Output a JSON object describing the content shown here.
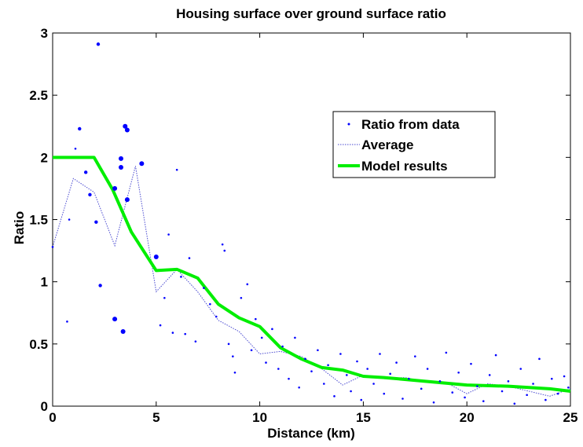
{
  "chart_data": {
    "type": "scatter",
    "title": "Housing surface over ground surface ratio",
    "xlabel": "Distance (km)",
    "ylabel": "Ratio",
    "xlim": [
      0,
      25
    ],
    "ylim": [
      0,
      3
    ],
    "xticks": [
      0,
      5,
      10,
      15,
      20,
      25
    ],
    "yticks": [
      0,
      0.5,
      1,
      1.5,
      2,
      2.5,
      3
    ],
    "xtick_labels": [
      "0",
      "5",
      "10",
      "15",
      "20",
      "25"
    ],
    "ytick_labels": [
      "0",
      "0.5",
      "1",
      "1.5",
      "2",
      "2.5",
      "3"
    ],
    "grid": false,
    "legend_position": "top-right",
    "legend": [
      "Ratio from data",
      "Average",
      "Model results"
    ],
    "colors": {
      "data": "#0000ff",
      "average": "#4a4ad0",
      "model": "#00ee00"
    },
    "series": [
      {
        "name": "Ratio from data",
        "style": "scatter",
        "points": [
          {
            "x": 0.0,
            "y": 1.28,
            "s": 1
          },
          {
            "x": 0.7,
            "y": 0.68,
            "s": 1
          },
          {
            "x": 0.8,
            "y": 1.5,
            "s": 1
          },
          {
            "x": 1.1,
            "y": 2.07,
            "s": 1
          },
          {
            "x": 1.3,
            "y": 2.23,
            "s": 2
          },
          {
            "x": 1.6,
            "y": 1.88,
            "s": 2
          },
          {
            "x": 1.8,
            "y": 1.7,
            "s": 2
          },
          {
            "x": 2.1,
            "y": 1.48,
            "s": 2
          },
          {
            "x": 2.2,
            "y": 2.91,
            "s": 2
          },
          {
            "x": 2.3,
            "y": 0.97,
            "s": 2
          },
          {
            "x": 3.0,
            "y": 1.75,
            "s": 3
          },
          {
            "x": 3.0,
            "y": 0.7,
            "s": 3
          },
          {
            "x": 3.3,
            "y": 1.99,
            "s": 3
          },
          {
            "x": 3.3,
            "y": 1.92,
            "s": 3
          },
          {
            "x": 3.4,
            "y": 0.6,
            "s": 3
          },
          {
            "x": 3.5,
            "y": 2.25,
            "s": 3
          },
          {
            "x": 3.6,
            "y": 2.22,
            "s": 3
          },
          {
            "x": 3.6,
            "y": 1.66,
            "s": 3
          },
          {
            "x": 4.3,
            "y": 1.95,
            "s": 3
          },
          {
            "x": 5.0,
            "y": 1.2,
            "s": 3
          },
          {
            "x": 5.2,
            "y": 0.65,
            "s": 1
          },
          {
            "x": 5.4,
            "y": 0.87,
            "s": 1
          },
          {
            "x": 5.6,
            "y": 1.38,
            "s": 1
          },
          {
            "x": 5.8,
            "y": 0.59,
            "s": 1
          },
          {
            "x": 6.0,
            "y": 1.9,
            "s": 1
          },
          {
            "x": 6.2,
            "y": 1.04,
            "s": 1
          },
          {
            "x": 6.4,
            "y": 0.58,
            "s": 1
          },
          {
            "x": 6.6,
            "y": 1.19,
            "s": 1
          },
          {
            "x": 6.9,
            "y": 0.52,
            "s": 1
          },
          {
            "x": 7.3,
            "y": 0.95,
            "s": 1
          },
          {
            "x": 7.6,
            "y": 0.82,
            "s": 1
          },
          {
            "x": 7.9,
            "y": 0.72,
            "s": 1
          },
          {
            "x": 8.2,
            "y": 1.3,
            "s": 1
          },
          {
            "x": 8.3,
            "y": 1.25,
            "s": 1
          },
          {
            "x": 8.5,
            "y": 0.5,
            "s": 1
          },
          {
            "x": 8.7,
            "y": 0.4,
            "s": 1
          },
          {
            "x": 8.8,
            "y": 0.27,
            "s": 1
          },
          {
            "x": 9.1,
            "y": 0.87,
            "s": 1
          },
          {
            "x": 9.4,
            "y": 0.98,
            "s": 1
          },
          {
            "x": 9.6,
            "y": 0.45,
            "s": 1
          },
          {
            "x": 9.8,
            "y": 0.7,
            "s": 1
          },
          {
            "x": 10.1,
            "y": 0.55,
            "s": 1
          },
          {
            "x": 10.3,
            "y": 0.35,
            "s": 1
          },
          {
            "x": 10.6,
            "y": 0.62,
            "s": 1
          },
          {
            "x": 10.9,
            "y": 0.3,
            "s": 1
          },
          {
            "x": 11.1,
            "y": 0.48,
            "s": 1
          },
          {
            "x": 11.4,
            "y": 0.22,
            "s": 1
          },
          {
            "x": 11.7,
            "y": 0.55,
            "s": 1
          },
          {
            "x": 11.9,
            "y": 0.15,
            "s": 1
          },
          {
            "x": 12.2,
            "y": 0.38,
            "s": 1
          },
          {
            "x": 12.5,
            "y": 0.28,
            "s": 1
          },
          {
            "x": 12.8,
            "y": 0.45,
            "s": 1
          },
          {
            "x": 13.1,
            "y": 0.18,
            "s": 1
          },
          {
            "x": 13.3,
            "y": 0.33,
            "s": 1
          },
          {
            "x": 13.6,
            "y": 0.08,
            "s": 1
          },
          {
            "x": 13.9,
            "y": 0.42,
            "s": 1
          },
          {
            "x": 14.2,
            "y": 0.25,
            "s": 1
          },
          {
            "x": 14.4,
            "y": 0.12,
            "s": 1
          },
          {
            "x": 14.7,
            "y": 0.36,
            "s": 1
          },
          {
            "x": 14.9,
            "y": 0.05,
            "s": 1
          },
          {
            "x": 15.2,
            "y": 0.3,
            "s": 1
          },
          {
            "x": 15.5,
            "y": 0.18,
            "s": 1
          },
          {
            "x": 15.8,
            "y": 0.42,
            "s": 1
          },
          {
            "x": 16.0,
            "y": 0.1,
            "s": 1
          },
          {
            "x": 16.3,
            "y": 0.26,
            "s": 1
          },
          {
            "x": 16.6,
            "y": 0.35,
            "s": 1
          },
          {
            "x": 16.9,
            "y": 0.06,
            "s": 1
          },
          {
            "x": 17.2,
            "y": 0.22,
            "s": 1
          },
          {
            "x": 17.5,
            "y": 0.4,
            "s": 1
          },
          {
            "x": 17.8,
            "y": 0.14,
            "s": 1
          },
          {
            "x": 18.1,
            "y": 0.3,
            "s": 1
          },
          {
            "x": 18.4,
            "y": 0.03,
            "s": 1
          },
          {
            "x": 18.7,
            "y": 0.2,
            "s": 1
          },
          {
            "x": 19.0,
            "y": 0.43,
            "s": 1
          },
          {
            "x": 19.3,
            "y": 0.11,
            "s": 1
          },
          {
            "x": 19.6,
            "y": 0.27,
            "s": 1
          },
          {
            "x": 19.9,
            "y": 0.07,
            "s": 1
          },
          {
            "x": 20.2,
            "y": 0.34,
            "s": 1
          },
          {
            "x": 20.5,
            "y": 0.16,
            "s": 1
          },
          {
            "x": 20.8,
            "y": 0.04,
            "s": 1
          },
          {
            "x": 21.1,
            "y": 0.25,
            "s": 1
          },
          {
            "x": 21.4,
            "y": 0.41,
            "s": 1
          },
          {
            "x": 21.7,
            "y": 0.12,
            "s": 1
          },
          {
            "x": 22.0,
            "y": 0.2,
            "s": 1
          },
          {
            "x": 22.3,
            "y": 0.02,
            "s": 1
          },
          {
            "x": 22.6,
            "y": 0.3,
            "s": 1
          },
          {
            "x": 22.9,
            "y": 0.09,
            "s": 1
          },
          {
            "x": 23.2,
            "y": 0.18,
            "s": 1
          },
          {
            "x": 23.5,
            "y": 0.38,
            "s": 1
          },
          {
            "x": 23.8,
            "y": 0.05,
            "s": 1
          },
          {
            "x": 24.1,
            "y": 0.22,
            "s": 1
          },
          {
            "x": 24.4,
            "y": 0.1,
            "s": 1
          },
          {
            "x": 24.7,
            "y": 0.24,
            "s": 1
          },
          {
            "x": 24.9,
            "y": 0.15,
            "s": 1
          }
        ]
      },
      {
        "name": "Average",
        "style": "dotted-line",
        "x": [
          0,
          1,
          2,
          3,
          4,
          5,
          6,
          7,
          8,
          9,
          10,
          11,
          12,
          13,
          14,
          15,
          16,
          17,
          18,
          19,
          20,
          21,
          22,
          23,
          24,
          25
        ],
        "y": [
          1.28,
          1.83,
          1.72,
          1.29,
          1.93,
          0.92,
          1.1,
          0.92,
          0.69,
          0.6,
          0.42,
          0.44,
          0.4,
          0.3,
          0.17,
          0.25,
          0.22,
          0.23,
          0.2,
          0.19,
          0.1,
          0.18,
          0.16,
          0.12,
          0.08,
          0.14
        ]
      },
      {
        "name": "Model results",
        "style": "solid-line",
        "x": [
          0,
          2,
          2.9,
          3.8,
          5,
          6,
          7,
          8,
          9,
          10,
          11,
          12,
          13,
          14,
          15,
          16,
          18,
          20,
          22,
          24,
          25
        ],
        "y": [
          2.0,
          2.0,
          1.74,
          1.4,
          1.09,
          1.1,
          1.03,
          0.82,
          0.71,
          0.64,
          0.47,
          0.38,
          0.31,
          0.29,
          0.24,
          0.23,
          0.2,
          0.17,
          0.16,
          0.14,
          0.12
        ]
      }
    ]
  }
}
